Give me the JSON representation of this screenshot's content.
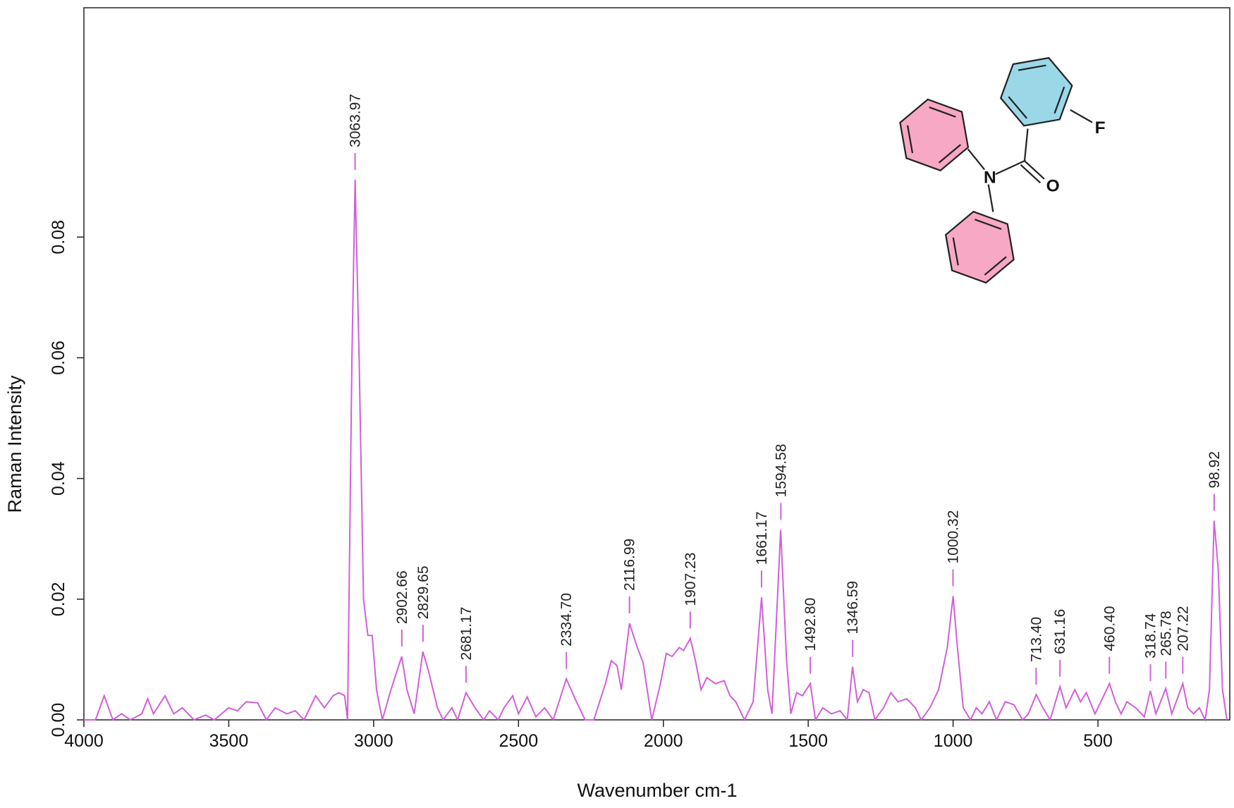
{
  "chart_data": {
    "type": "line",
    "x_label": "Wavenumber cm-1",
    "y_label": "Raman Intensity",
    "color": "#d060d8",
    "xlim": [
      4000,
      45
    ],
    "ylim": [
      0,
      0.118
    ],
    "xticks": [
      4000,
      3500,
      3000,
      2500,
      2000,
      1500,
      1000,
      500
    ],
    "yticks": [
      {
        "value": 0,
        "label": "0.00"
      },
      0.02,
      0.04,
      0.06,
      0.08
    ],
    "x": [
      4000,
      3960,
      3930,
      3900,
      3870,
      3840,
      3800,
      3780,
      3760,
      3720,
      3690,
      3660,
      3620,
      3580,
      3550,
      3500,
      3470,
      3440,
      3400,
      3370,
      3340,
      3300,
      3270,
      3240,
      3200,
      3170,
      3140,
      3120,
      3100,
      3090,
      3075,
      3064,
      3050,
      3035,
      3020,
      3005,
      2990,
      2970,
      2940,
      2920,
      2903,
      2885,
      2860,
      2830,
      2810,
      2780,
      2760,
      2730,
      2710,
      2681,
      2650,
      2620,
      2600,
      2570,
      2550,
      2520,
      2500,
      2470,
      2440,
      2410,
      2380,
      2335,
      2300,
      2270,
      2240,
      2200,
      2180,
      2160,
      2145,
      2117,
      2090,
      2070,
      2040,
      2010,
      1990,
      1970,
      1945,
      1930,
      1907,
      1890,
      1870,
      1850,
      1820,
      1790,
      1770,
      1750,
      1720,
      1690,
      1661,
      1640,
      1625,
      1595,
      1575,
      1560,
      1540,
      1520,
      1493,
      1475,
      1450,
      1420,
      1390,
      1365,
      1347,
      1330,
      1310,
      1290,
      1270,
      1240,
      1215,
      1190,
      1160,
      1130,
      1110,
      1080,
      1050,
      1020,
      1000,
      985,
      965,
      940,
      920,
      900,
      875,
      850,
      820,
      790,
      760,
      740,
      713,
      690,
      665,
      631,
      610,
      580,
      560,
      540,
      510,
      460,
      440,
      420,
      400,
      370,
      340,
      319,
      300,
      266,
      245,
      207,
      190,
      170,
      150,
      130,
      115,
      99,
      85,
      70,
      55
    ],
    "values": [
      0,
      0,
      0.004,
      0,
      0.001,
      0,
      0.001,
      0.0035,
      0.001,
      0.004,
      0.001,
      0.002,
      0,
      0.0008,
      0,
      0.002,
      0.0015,
      0.003,
      0.0028,
      0,
      0.002,
      0.001,
      0.0015,
      0,
      0.004,
      0.002,
      0.004,
      0.0045,
      0.004,
      0,
      0.06,
      0.0895,
      0.06,
      0.02,
      0.014,
      0.014,
      0.005,
      0,
      0.005,
      0.008,
      0.0105,
      0.005,
      0.001,
      0.0113,
      0.008,
      0.002,
      0,
      0.002,
      0,
      0.0045,
      0.002,
      0,
      0.0015,
      0,
      0.002,
      0.004,
      0.001,
      0.0038,
      0.0005,
      0.002,
      0,
      0.0068,
      0.003,
      0,
      0,
      0.006,
      0.0098,
      0.009,
      0.005,
      0.016,
      0.012,
      0.0095,
      0,
      0.006,
      0.011,
      0.0105,
      0.012,
      0.0115,
      0.0135,
      0.01,
      0.005,
      0.007,
      0.006,
      0.0065,
      0.004,
      0.003,
      0,
      0.003,
      0.0203,
      0.005,
      0.001,
      0.0315,
      0.01,
      0.001,
      0.0045,
      0.004,
      0.006,
      0,
      0.002,
      0.001,
      0.0015,
      0,
      0.0088,
      0.003,
      0.005,
      0.0045,
      0,
      0.002,
      0.0045,
      0.003,
      0.0035,
      0.002,
      0,
      0.002,
      0.005,
      0.012,
      0.0205,
      0.012,
      0.002,
      0,
      0.002,
      0.001,
      0.003,
      0,
      0.003,
      0.0025,
      0,
      0.001,
      0.0042,
      0.002,
      0,
      0.0055,
      0.002,
      0.005,
      0.003,
      0.0045,
      0.001,
      0.006,
      0.003,
      0.001,
      0.003,
      0.002,
      0.0005,
      0.0048,
      0.001,
      0.0052,
      0.001,
      0.006,
      0.002,
      0.001,
      0.002,
      0,
      0.005,
      0.033,
      0.025,
      0.005,
      0
    ],
    "peaks": [
      {
        "value": 3063.97,
        "label": "3063.97"
      },
      {
        "value": 2902.66,
        "label": "2902.66"
      },
      {
        "value": 2829.65,
        "label": "2829.65"
      },
      {
        "value": 2681.17,
        "label": "2681.17"
      },
      {
        "value": 2334.7,
        "label": "2334.70"
      },
      {
        "value": 2116.99,
        "label": "2116.99"
      },
      {
        "value": 1907.23,
        "label": "1907.23"
      },
      {
        "value": 1661.17,
        "label": "1661.17"
      },
      {
        "value": 1594.58,
        "label": "1594.58"
      },
      {
        "value": 1492.8,
        "label": "1492.80"
      },
      {
        "value": 1346.59,
        "label": "1346.59"
      },
      {
        "value": 1000.32,
        "label": "1000.32"
      },
      {
        "value": 713.4,
        "label": "713.40"
      },
      {
        "value": 631.16,
        "label": "631.16"
      },
      {
        "value": 460.4,
        "label": "460.40"
      },
      {
        "value": 318.74,
        "label": "318.74"
      },
      {
        "value": 265.78,
        "label": "265.78"
      },
      {
        "value": 207.22,
        "label": "207.22"
      },
      {
        "value": 98.92,
        "label": "98.92"
      }
    ],
    "molecule": {
      "atoms": [
        "F",
        "N",
        "O"
      ]
    }
  }
}
